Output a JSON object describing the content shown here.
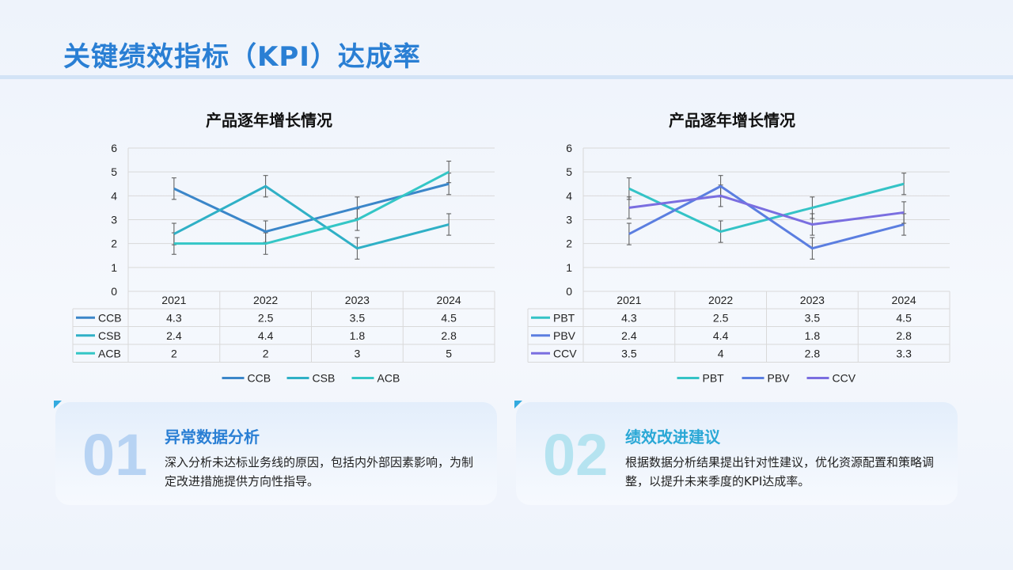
{
  "slide": {
    "title": "关键绩效指标（KPI）达成率"
  },
  "colors": {
    "title": "#2a7fd4",
    "ccb": "#3b86c9",
    "csb": "#2fb0c6",
    "acb": "#34c6c6",
    "pbt": "#34c3c6",
    "pbv": "#5b7ee0",
    "ccv": "#7a6ee0"
  },
  "chart_data": [
    {
      "type": "line",
      "title": "产品逐年增长情况",
      "categories": [
        "2021",
        "2022",
        "2023",
        "2024"
      ],
      "ylim": [
        0,
        6
      ],
      "yticks": [
        0,
        1,
        2,
        3,
        4,
        5,
        6
      ],
      "grid": true,
      "error_bars": true,
      "data_table": true,
      "legend": "bottom",
      "series": [
        {
          "name": "CCB",
          "values": [
            4.3,
            2.5,
            3.5,
            4.5
          ],
          "labels": [
            "4.3",
            "2.5",
            "3.5",
            "4.5"
          ],
          "color": "#3b86c9"
        },
        {
          "name": "CSB",
          "values": [
            2.4,
            4.4,
            1.8,
            2.8
          ],
          "labels": [
            "2.4",
            "4.4",
            "1.8",
            "2.8"
          ],
          "color": "#2fb0c6"
        },
        {
          "name": "ACB",
          "values": [
            2,
            2,
            3,
            5
          ],
          "labels": [
            "2",
            "2",
            "3",
            "5"
          ],
          "color": "#34c6c6"
        }
      ]
    },
    {
      "type": "line",
      "title": "产品逐年增长情况",
      "categories": [
        "2021",
        "2022",
        "2023",
        "2024"
      ],
      "ylim": [
        0,
        6
      ],
      "yticks": [
        0,
        1,
        2,
        3,
        4,
        5,
        6
      ],
      "grid": true,
      "error_bars": true,
      "data_table": true,
      "legend": "bottom",
      "series": [
        {
          "name": "PBT",
          "values": [
            4.3,
            2.5,
            3.5,
            4.5
          ],
          "labels": [
            "4.3",
            "2.5",
            "3.5",
            "4.5"
          ],
          "color": "#34c3c6"
        },
        {
          "name": "PBV",
          "values": [
            2.4,
            4.4,
            1.8,
            2.8
          ],
          "labels": [
            "2.4",
            "4.4",
            "1.8",
            "2.8"
          ],
          "color": "#5b7ee0"
        },
        {
          "name": "CCV",
          "values": [
            3.5,
            4,
            2.8,
            3.3
          ],
          "labels": [
            "3.5",
            "4",
            "2.8",
            "3.3"
          ],
          "color": "#7a6ee0"
        }
      ]
    }
  ],
  "cards": [
    {
      "number": "01",
      "heading": "异常数据分析",
      "text": "深入分析未达标业务线的原因，包括内外部因素影响，为制定改进措施提供方向性指导。",
      "number_color": "#b7d3f3",
      "heading_color": "#2a7fd4"
    },
    {
      "number": "02",
      "heading": "绩效改进建议",
      "text": "根据数据分析结果提出针对性建议，优化资源配置和策略调整，以提升未来季度的KPI达成率。",
      "number_color": "#b5e3f0",
      "heading_color": "#2aa8d6"
    }
  ]
}
